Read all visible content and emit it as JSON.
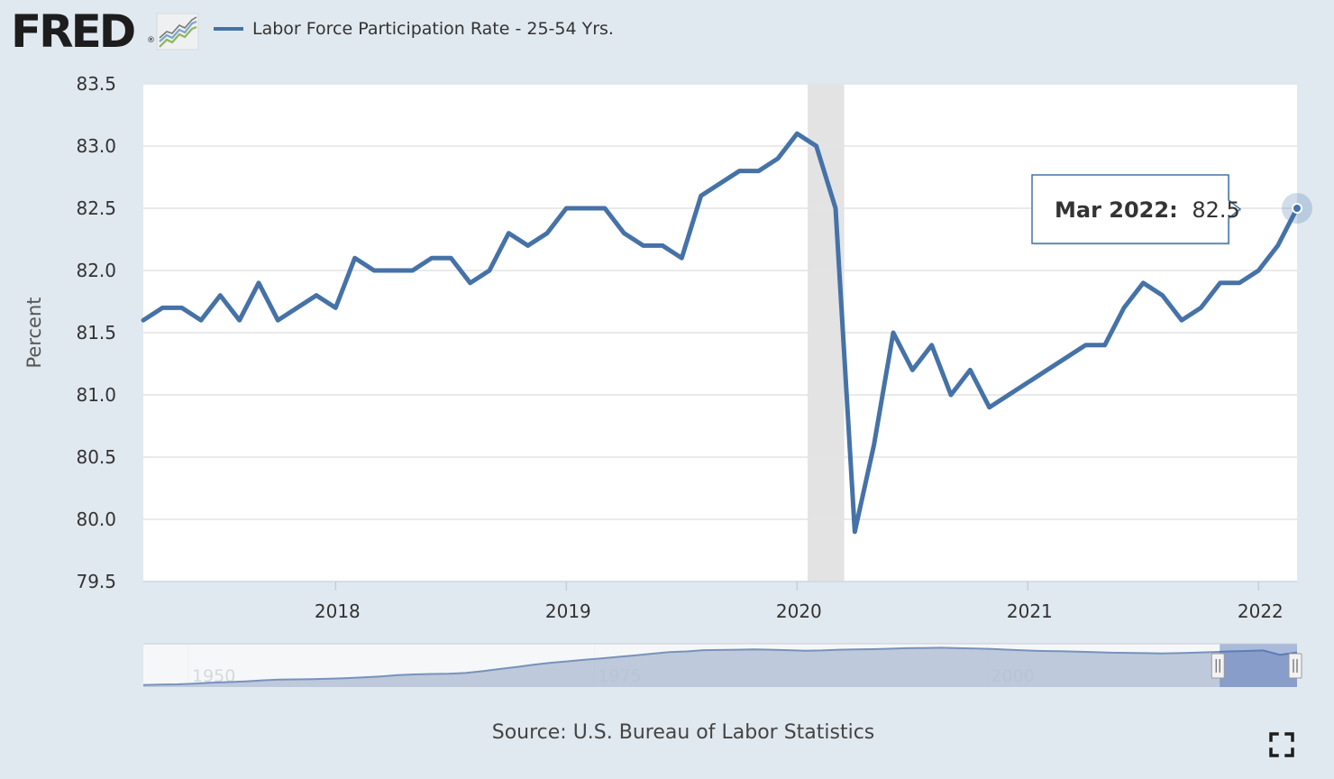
{
  "header": {
    "logo_text": "FRED",
    "logo_reg": "®",
    "legend_label": "Labor Force Participation Rate - 25-54 Yrs."
  },
  "tooltip": {
    "label": "Mar 2022:",
    "value": "82.5"
  },
  "source_text": "Source: U.S. Bureau of Labor Statistics",
  "colors": {
    "series": "#4572a7",
    "recession": "#e3e3e3",
    "background": "#e1e9f0",
    "navigator_fill": "#9aabc8",
    "navigator_line": "#4a6fa5"
  },
  "icons": {
    "fullscreen": "fullscreen-icon",
    "logo_graph": "graph-icon"
  },
  "chart_data": {
    "type": "line",
    "title": "Labor Force Participation Rate - 25-54 Yrs.",
    "xlabel": "",
    "ylabel": "Percent",
    "ylim": [
      79.5,
      83.5
    ],
    "yticks": [
      "83.5",
      "83.0",
      "82.5",
      "82.0",
      "81.5",
      "81.0",
      "80.5",
      "80.0",
      "79.5"
    ],
    "xticks": [
      {
        "label": "2018",
        "month_index": 10
      },
      {
        "label": "2019",
        "month_index": 22
      },
      {
        "label": "2020",
        "month_index": 34
      },
      {
        "label": "2021",
        "month_index": 46
      },
      {
        "label": "2022",
        "month_index": 58
      }
    ],
    "x_start": "Mar 2017",
    "x_end": "Mar 2022",
    "recession_band": {
      "start_month_index": 35,
      "end_month_index": 37
    },
    "series": [
      {
        "name": "Labor Force Participation Rate - 25-54 Yrs.",
        "values": [
          81.6,
          81.7,
          81.7,
          81.6,
          81.8,
          81.6,
          81.9,
          81.6,
          81.7,
          81.8,
          81.7,
          82.1,
          82.0,
          82.0,
          82.0,
          82.1,
          82.1,
          81.9,
          82.0,
          82.3,
          82.2,
          82.3,
          82.5,
          82.5,
          82.5,
          82.3,
          82.2,
          82.2,
          82.1,
          82.6,
          82.7,
          82.8,
          82.8,
          82.9,
          83.1,
          83.0,
          82.5,
          79.9,
          80.6,
          81.5,
          81.2,
          81.4,
          81.0,
          81.2,
          80.9,
          81.0,
          81.1,
          81.2,
          81.3,
          81.4,
          81.4,
          81.7,
          81.9,
          81.8,
          81.6,
          81.7,
          81.9,
          81.9,
          82.0,
          82.2,
          82.5
        ]
      }
    ],
    "navigator": {
      "labels": [
        "1950",
        "1975",
        "2000"
      ],
      "values": [
        69.3,
        69.5,
        69.6,
        69.9,
        70.3,
        70.5,
        70.8,
        71.2,
        71.5,
        71.6,
        71.7,
        71.9,
        72.1,
        72.4,
        72.8,
        73.3,
        73.6,
        73.8,
        73.9,
        74.2,
        74.9,
        75.8,
        76.6,
        77.5,
        78.3,
        78.9,
        79.5,
        80.1,
        80.7,
        81.3,
        82.0,
        82.6,
        82.9,
        83.4,
        83.5,
        83.6,
        83.7,
        83.6,
        83.4,
        83.2,
        83.3,
        83.6,
        83.7,
        83.8,
        84.0,
        84.2,
        84.3,
        84.4,
        84.2,
        84.1,
        83.9,
        83.6,
        83.3,
        83.1,
        83.0,
        82.8,
        82.6,
        82.4,
        82.3,
        82.2,
        82.1,
        82.2,
        82.4,
        82.6,
        82.9,
        83.1,
        83.3,
        81.5,
        82.5
      ],
      "vmin": 68.5,
      "vmax": 86,
      "window_start_fraction": 0.933,
      "window_end_fraction": 1.0
    }
  }
}
